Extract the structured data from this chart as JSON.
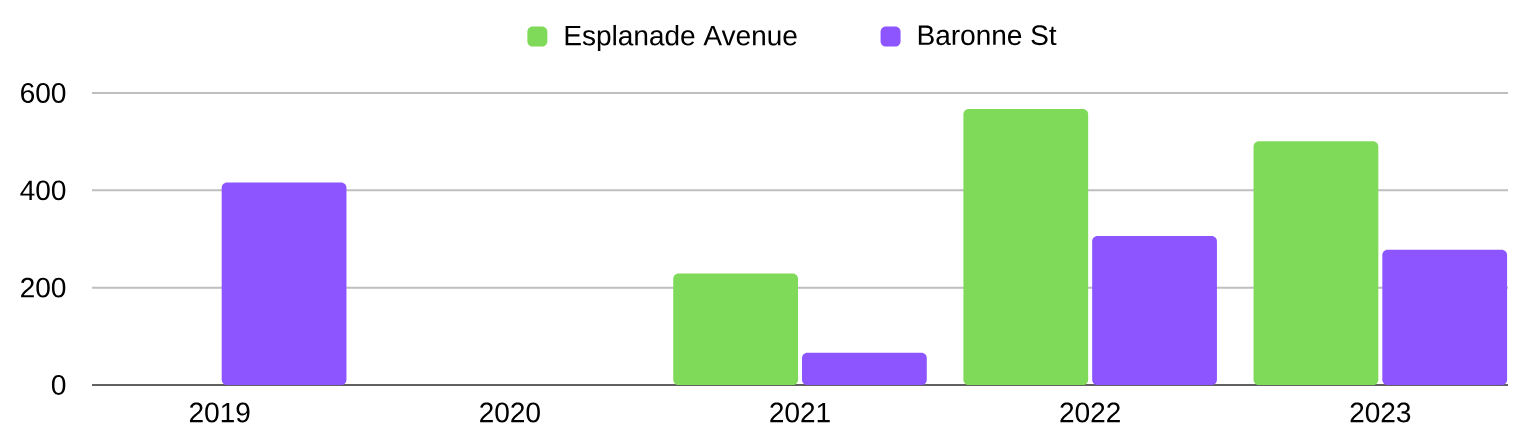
{
  "chart_data": {
    "type": "bar",
    "categories": [
      "2019",
      "2020",
      "2021",
      "2022",
      "2023"
    ],
    "series": [
      {
        "name": "Esplanade Avenue",
        "color": "#80da5a",
        "values": [
          null,
          null,
          229,
          567,
          501
        ]
      },
      {
        "name": "Baronne St",
        "color": "#8c55ff",
        "values": [
          416,
          null,
          66,
          306,
          278
        ]
      }
    ],
    "ylim": [
      0,
      600
    ],
    "yticks": [
      0,
      200,
      400,
      600
    ],
    "grid": "y",
    "legend": "top"
  }
}
